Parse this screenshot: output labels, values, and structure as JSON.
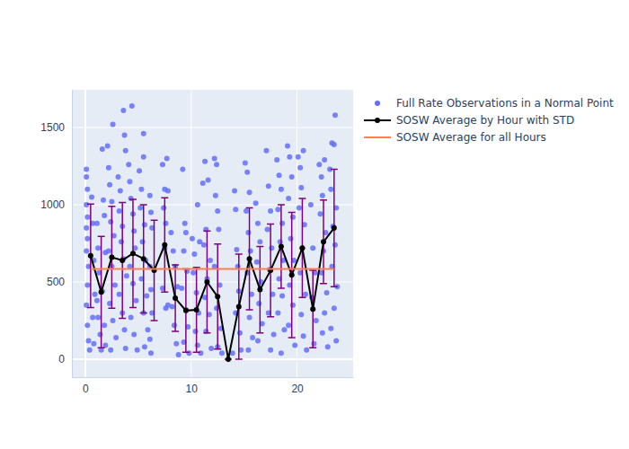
{
  "chart_data": {
    "type": "scatter",
    "xlim": [
      -1.27,
      25.3
    ],
    "ylim": [
      -116,
      1744
    ],
    "xticks": [
      0,
      10,
      20
    ],
    "yticks": [
      0,
      500,
      1000,
      1500
    ],
    "grid": true,
    "legend": "right",
    "series": [
      {
        "name": "Full Rate Observations in a Normal Point",
        "type": "scatter",
        "marker": "circle",
        "color": "#636efa",
        "x": [
          0.1,
          0.1,
          0.2,
          0.1,
          0.2,
          0.1,
          0.2,
          0.1,
          0.3,
          0.2,
          0.1,
          0.2,
          0.3,
          0.4,
          0.6,
          0.7,
          0.8,
          0.9,
          0.7,
          0.8,
          1.1,
          1.2,
          1.3,
          1.1,
          1.2,
          1.4,
          1.5,
          1.6,
          1.7,
          1.8,
          1.9,
          1.6,
          1.8,
          1.9,
          2.1,
          2.2,
          2.3,
          2.5,
          2.6,
          2.4,
          2.7,
          2.2,
          2.5,
          2.8,
          2.3,
          2.6,
          2.9,
          2.4,
          3.1,
          3.3,
          3.2,
          3.5,
          3.6,
          3.7,
          3.8,
          3.4,
          3.6,
          3.9,
          3.2,
          3.5,
          3.7,
          3.8,
          4.1,
          4.2,
          4.3,
          4.4,
          4.5,
          4.6,
          4.7,
          4.2,
          4.5,
          4.8,
          4.3,
          4.6,
          4.9,
          5.1,
          5.3,
          5.5,
          5.5,
          5.2,
          5.6,
          5.4,
          5.7,
          5.3,
          5.8,
          5.5,
          5.9,
          5.6,
          6.1,
          6.2,
          6.3,
          6.1,
          6.2,
          6.3,
          6.1,
          6.2,
          7.3,
          7.5,
          7.7,
          7.8,
          7.4,
          7.6,
          7.5,
          7.3,
          7.6,
          7.8,
          8.1,
          8.3,
          8.5,
          8.7,
          8.2,
          8.4,
          8.6,
          8.8,
          9.2,
          9.4,
          9.5,
          9.3,
          9.6,
          9.1,
          9.5,
          9.7,
          9.3,
          9.8,
          10.1,
          10.3,
          10.6,
          10.8,
          10.2,
          10.5,
          10.7,
          10.4,
          10.6,
          10.9,
          11.1,
          11.3,
          11.6,
          11.4,
          11.2,
          11.8,
          11.5,
          11.3,
          11.7,
          11.4,
          11.9,
          12.2,
          12.4,
          12.3,
          12.5,
          12.6,
          12.2,
          12.7,
          12.4,
          12.8,
          12.5,
          12.9,
          13.9,
          14.1,
          14.2,
          14.3,
          14.4,
          14.5,
          14.2,
          14.6,
          14.7,
          15.1,
          15.3,
          15.5,
          15.2,
          15.4,
          15.6,
          15.3,
          15.7,
          15.5,
          15.8,
          15.4,
          16.1,
          16.3,
          16.5,
          16.2,
          16.6,
          16.4,
          16.7,
          16.3,
          17.1,
          17.3,
          17.5,
          17.2,
          17.6,
          17.4,
          17.7,
          17.3,
          17.8,
          17.5,
          18.1,
          18.3,
          18.5,
          18.2,
          18.6,
          18.4,
          18.7,
          18.3,
          18.6,
          18.2,
          18.8,
          18.5,
          19.1,
          19.3,
          19.5,
          19.2,
          19.6,
          19.4,
          19.7,
          19.3,
          19.6,
          19.2,
          19.8,
          20.1,
          20.3,
          20.6,
          20.4,
          20.2,
          20.7,
          20.5,
          20.3,
          20.8,
          20.4,
          20.6,
          20.9,
          21.3,
          21.5,
          21.7,
          21.4,
          21.8,
          21.6,
          22.1,
          22.3,
          22.6,
          22.4,
          22.2,
          22.7,
          22.5,
          22.3,
          22.8,
          22.6,
          22.4,
          22.9,
          23.1,
          23.3,
          23.6,
          23.5,
          23.2,
          23.7,
          23.4,
          23.6,
          23.3,
          23.8,
          23.5,
          23.2,
          23.7
        ],
        "values": [
          1230,
          1180,
          1100,
          1000,
          920,
          850,
          780,
          700,
          600,
          480,
          350,
          220,
          120,
          60,
          1050,
          880,
          640,
          420,
          270,
          100,
          880,
          720,
          560,
          380,
          270,
          160,
          60,
          1360,
          1030,
          930,
          690,
          440,
          220,
          90,
          1380,
          1240,
          1130,
          1020,
          1520,
          890,
          800,
          700,
          600,
          480,
          360,
          250,
          140,
          60,
          1180,
          1090,
          960,
          860,
          1610,
          1450,
          1350,
          760,
          650,
          540,
          420,
          300,
          190,
          70,
          1260,
          1150,
          1040,
          1640,
          940,
          830,
          720,
          600,
          490,
          380,
          270,
          160,
          60,
          1220,
          1100,
          1310,
          1460,
          980,
          870,
          760,
          640,
          520,
          410,
          300,
          190,
          80,
          1060,
          950,
          850,
          600,
          450,
          300,
          130,
          40,
          1260,
          1100,
          1300,
          1090,
          980,
          880,
          720,
          460,
          330,
          350,
          820,
          700,
          600,
          470,
          340,
          220,
          100,
          30,
          1230,
          880,
          820,
          700,
          570,
          460,
          320,
          210,
          110,
          40,
          780,
          680,
          1000,
          760,
          560,
          430,
          300,
          180,
          90,
          40,
          1140,
          1280,
          1160,
          840,
          740,
          640,
          520,
          400,
          290,
          180,
          70,
          1300,
          1260,
          1060,
          960,
          840,
          600,
          480,
          330,
          200,
          80,
          40,
          40,
          1090,
          970,
          710,
          600,
          440,
          300,
          170,
          60,
          1270,
          1210,
          1080,
          960,
          820,
          700,
          560,
          420,
          270,
          140,
          60,
          1010,
          880,
          760,
          630,
          500,
          360,
          230,
          120,
          1350,
          1120,
          960,
          840,
          720,
          580,
          420,
          300,
          160,
          60,
          1290,
          1190,
          1100,
          970,
          880,
          760,
          640,
          520,
          410,
          300,
          190,
          40,
          1380,
          1310,
          1180,
          1040,
          920,
          780,
          640,
          480,
          350,
          220,
          90,
          1310,
          1240,
          1350,
          1110,
          980,
          870,
          720,
          560,
          420,
          290,
          150,
          60,
          1000,
          720,
          560,
          400,
          250,
          100,
          1260,
          1180,
          1290,
          1060,
          940,
          820,
          700,
          560,
          430,
          300,
          170,
          80,
          1230,
          1400,
          1580,
          1390,
          1100,
          980,
          860,
          740,
          600,
          470,
          330,
          200,
          120
        ]
      },
      {
        "name": "SOSW Average by Hour with STD",
        "type": "line",
        "marker": "circle",
        "color": "#000000",
        "x": [
          0.5,
          1.5,
          2.5,
          3.5,
          4.5,
          5.5,
          6.5,
          7.5,
          8.5,
          9.5,
          10.5,
          11.5,
          12.5,
          13.5,
          14.5,
          15.5,
          16.5,
          17.5,
          18.5,
          19.5,
          20.5,
          21.5,
          22.5,
          23.5
        ],
        "values": [
          670,
          435,
          660,
          640,
          685,
          650,
          575,
          740,
          395,
          315,
          320,
          500,
          405,
          0,
          340,
          650,
          450,
          575,
          730,
          545,
          720,
          325,
          760,
          850
        ],
        "error": [
          335,
          360,
          330,
          375,
          350,
          350,
          325,
          305,
          215,
          270,
          275,
          330,
          340,
          0,
          340,
          330,
          280,
          300,
          270,
          405,
          320,
          250,
          270,
          380
        ]
      },
      {
        "name": "SOSW Average for all Hours",
        "type": "line",
        "marker": "none",
        "color": "#ff7f50",
        "x": [
          0.5,
          23.5
        ],
        "values": [
          585,
          585
        ]
      }
    ]
  }
}
